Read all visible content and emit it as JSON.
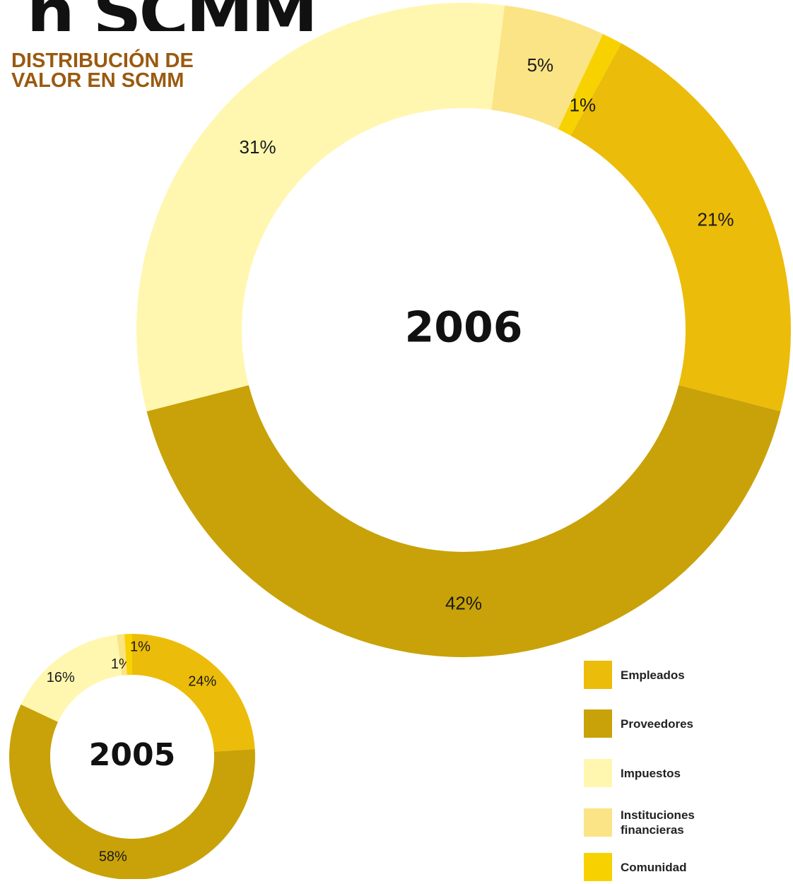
{
  "header": {
    "title_fragment": "n SCMM",
    "subtitle_line1": "DISTRIBUCIÓN DE",
    "subtitle_line2": "VALOR EN SCMM"
  },
  "chart_data": [
    {
      "type": "pie",
      "variant": "donut",
      "center_label": "2006",
      "slices": [
        {
          "name": "Empleados",
          "value": 21,
          "label": "21%"
        },
        {
          "name": "Proveedores",
          "value": 42,
          "label": "42%"
        },
        {
          "name": "Impuestos",
          "value": 31,
          "label": "31%"
        },
        {
          "name": "Instituciones financieras",
          "value": 5,
          "label": "5%"
        },
        {
          "name": "Comunidad",
          "value": 1,
          "label": "1%"
        }
      ]
    },
    {
      "type": "pie",
      "variant": "donut",
      "center_label": "2005",
      "slices": [
        {
          "name": "Empleados",
          "value": 24,
          "label": "24%"
        },
        {
          "name": "Proveedores",
          "value": 58,
          "label": "58%"
        },
        {
          "name": "Impuestos",
          "value": 16,
          "label": "16%"
        },
        {
          "name": "Instituciones financieras",
          "value": 1,
          "label": "1%"
        },
        {
          "name": "Comunidad",
          "value": 1,
          "label": "1%"
        }
      ]
    }
  ],
  "legend": {
    "placement": "bottom-right",
    "items": [
      {
        "name": "Empleados",
        "color": "#ecbc0a"
      },
      {
        "name": "Proveedores",
        "color": "#c8a208"
      },
      {
        "name": "Impuestos",
        "color": "#fff7b0"
      },
      {
        "name": "Instituciones financieras",
        "color": "#fbe485"
      },
      {
        "name": "Comunidad",
        "color": "#f7d200"
      }
    ]
  },
  "colors": {
    "Empleados": "#ecbc0a",
    "Proveedores": "#c8a208",
    "Impuestos": "#fff7b0",
    "Instituciones financieras": "#fbe485",
    "Comunidad": "#f7d200",
    "subtitle": "#9a5a10"
  }
}
